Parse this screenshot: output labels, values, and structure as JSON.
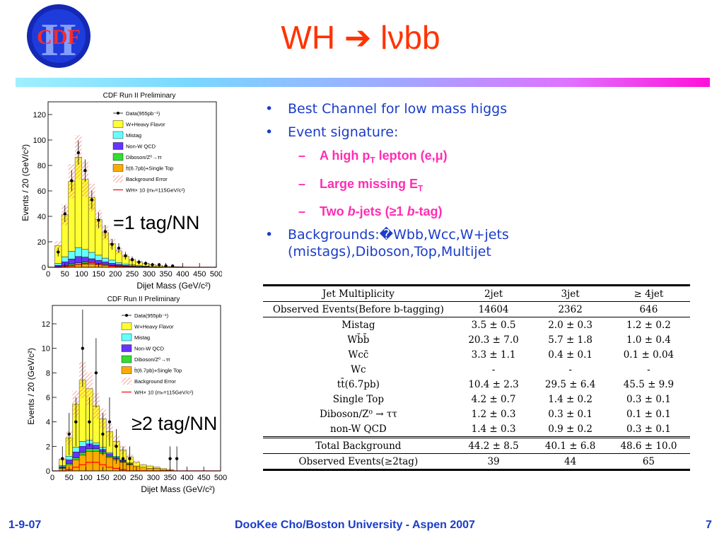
{
  "logo": {
    "text": "CDF",
    "numeral": "II"
  },
  "title": "WH ➔ lνbb",
  "bullets": {
    "b1": "Best Channel for low mass higgs",
    "b2": "Event signature:",
    "sub1": {
      "a": "A high p",
      "sub": "T",
      "b": " lepton (e,μ)"
    },
    "sub2": {
      "a": "Large missing E",
      "sub": "T"
    },
    "sub3": {
      "a": "Two ",
      "b": "b",
      "c": "-jets (≥1 ",
      "d": "b",
      "e": "-tag)"
    },
    "b3": "Backgrounds:�Wbb,Wcc,W+jets (mistags),Diboson,Top,Multijet"
  },
  "tag_labels": {
    "one": "=1 tag/NN",
    "two": "≥2 tag/NN"
  },
  "plots": {
    "top": {
      "title": "CDF Run II Preliminary",
      "ylabel": "Events / 20 (GeV/c²)",
      "xlabel": "Dijet Mass (GeV/c²)",
      "yticks": [
        "0",
        "20",
        "40",
        "60",
        "80",
        "100",
        "120"
      ],
      "xticks": [
        "0",
        "50",
        "100",
        "150",
        "200",
        "250",
        "300",
        "350",
        "400",
        "450",
        "500"
      ]
    },
    "bottom": {
      "title": "CDF Run II Preliminary",
      "ylabel": "Events / 20 (GeV/c²)",
      "xlabel": "Dijet Mass (GeV/c²)",
      "yticks": [
        "0",
        "2",
        "4",
        "6",
        "8",
        "10",
        "12"
      ],
      "xticks": [
        "0",
        "50",
        "100",
        "150",
        "200",
        "250",
        "300",
        "350",
        "400",
        "450",
        "500"
      ]
    },
    "legend": [
      {
        "label": "Data(955pb⁻¹)",
        "kind": "data",
        "color": "#000000"
      },
      {
        "label": "W+Heavy Flavor",
        "kind": "box",
        "color": "#ffff33"
      },
      {
        "label": "Mistag",
        "kind": "box",
        "color": "#66ffff"
      },
      {
        "label": "Non-W QCD",
        "kind": "box",
        "color": "#6633ff"
      },
      {
        "label": "Diboson/Z⁰→ττ",
        "kind": "box",
        "color": "#33dd33"
      },
      {
        "label": "t̄t(6.7pb)+Single Top",
        "kind": "box",
        "color": "#ffaa00"
      },
      {
        "label": "Background Error",
        "kind": "hatch",
        "color": "#ff6666"
      },
      {
        "label": "WH× 10 (mₕ=115GeV/c²)",
        "kind": "line",
        "color": "#ff0000"
      }
    ]
  },
  "table": {
    "header": [
      "Jet Multiplicity",
      "2jet",
      "3jet",
      "≥ 4jet"
    ],
    "observed_before": [
      "Observed Events(Before b-tagging)",
      "14604",
      "2362",
      "646"
    ],
    "rows": [
      [
        "Mistag",
        "3.5 ± 0.5",
        "2.0 ± 0.3",
        "1.2 ± 0.2"
      ],
      [
        "Wb̄b̄",
        "20.3 ± 7.0",
        "5.7 ± 1.8",
        "1.0 ± 0.4"
      ],
      [
        "Wcc̄",
        "3.3 ± 1.1",
        "0.4 ± 0.1",
        "0.1 ± 0.04"
      ],
      [
        "Wc",
        "-",
        "-",
        "-"
      ],
      [
        "tt̄(6.7pb)",
        "10.4 ± 2.3",
        "29.5 ± 6.4",
        "45.5 ± 9.9"
      ],
      [
        "Single Top",
        "4.2 ± 0.7",
        "1.4 ± 0.2",
        "0.3 ± 0.1"
      ],
      [
        "Diboson/Z⁰ → ττ",
        "1.2 ± 0.3",
        "0.3 ± 0.1",
        "0.1 ± 0.1"
      ],
      [
        "non-W QCD",
        "1.4 ± 0.3",
        "0.9 ± 0.2",
        "0.3 ± 0.1"
      ]
    ],
    "total": [
      "Total Background",
      "44.2 ± 8.5",
      "40.1 ± 6.8",
      "48.6 ± 10.0"
    ],
    "observed_after": [
      "Observed Events(≥2tag)",
      "39",
      "44",
      "65"
    ]
  },
  "footer": {
    "left": "1-9-07",
    "center": "DooKee Cho/Boston University - Aspen 2007",
    "right": "7"
  },
  "chart_data": [
    {
      "type": "bar",
      "title": "CDF Run II Preliminary",
      "xlabel": "Dijet Mass (GeV/c²)",
      "ylabel": "Events / 20 (GeV/c²)",
      "xlim": [
        0,
        500
      ],
      "ylim": [
        0,
        130
      ],
      "bin_width": 20,
      "categories": [
        10,
        30,
        50,
        70,
        90,
        110,
        130,
        150,
        170,
        190,
        210,
        230,
        250,
        270,
        290,
        310,
        330,
        350,
        370,
        390,
        410,
        430,
        450,
        470,
        490
      ],
      "series": [
        {
          "name": "t̄t(6.7pb)+Single Top",
          "values": [
            0,
            0.3,
            0.8,
            1.5,
            2,
            2.5,
            2.5,
            2,
            1.6,
            1.2,
            1,
            0.8,
            0.6,
            0.4,
            0.3,
            0.2,
            0.2,
            0.1,
            0.1,
            0.1,
            0,
            0,
            0,
            0,
            0
          ]
        },
        {
          "name": "Diboson/Z⁰→ττ",
          "values": [
            0,
            0.2,
            0.5,
            1,
            1.5,
            1.5,
            1.2,
            1,
            0.6,
            0.4,
            0.3,
            0.2,
            0.1,
            0.1,
            0.1,
            0,
            0,
            0,
            0,
            0,
            0,
            0,
            0,
            0,
            0
          ]
        },
        {
          "name": "Non-W QCD",
          "values": [
            0,
            1,
            3,
            4,
            5,
            4,
            3,
            2.5,
            2,
            1.5,
            1,
            0.6,
            0.4,
            0.3,
            0.2,
            0.1,
            0.1,
            0,
            0,
            0,
            0,
            0,
            0,
            0,
            0
          ]
        },
        {
          "name": "Mistag",
          "values": [
            0,
            1.5,
            4,
            6,
            7,
            6,
            5,
            4,
            3,
            2.5,
            1.5,
            1,
            0.8,
            0.5,
            0.3,
            0.2,
            0.1,
            0.1,
            0,
            0,
            0,
            0,
            0,
            0,
            0
          ]
        },
        {
          "name": "W+Heavy Flavor",
          "values": [
            0,
            14,
            33,
            55,
            71,
            55,
            43,
            28,
            20,
            13,
            9,
            6,
            4,
            3,
            2,
            1.5,
            1,
            0.5,
            0.4,
            0.3,
            0.2,
            0.1,
            0.1,
            0,
            0
          ]
        }
      ],
      "data": {
        "name": "Data(955pb⁻¹)",
        "values": [
          0,
          12,
          42,
          68,
          90,
          76,
          53,
          37,
          28,
          18,
          15,
          9,
          6,
          4,
          3,
          2,
          2,
          1,
          1,
          0,
          0,
          0,
          0,
          0,
          0
        ]
      },
      "signal": {
        "name": "WH× 10 (mₕ=115GeV/c²)",
        "values": [
          0,
          0,
          0.5,
          1,
          2,
          3,
          3.5,
          2.5,
          1.5,
          0.8,
          0.4,
          0.2,
          0.1,
          0,
          0,
          0,
          0,
          0,
          0,
          0,
          0,
          0,
          0,
          0,
          0
        ]
      }
    },
    {
      "type": "bar",
      "title": "CDF Run II Preliminary",
      "xlabel": "Dijet Mass (GeV/c²)",
      "ylabel": "Events / 20 (GeV/c²)",
      "xlim": [
        0,
        500
      ],
      "ylim": [
        0,
        13.5
      ],
      "bin_width": 20,
      "categories": [
        10,
        30,
        50,
        70,
        90,
        110,
        130,
        150,
        170,
        190,
        210,
        230,
        250,
        270,
        290,
        310,
        330,
        350,
        370,
        390,
        410,
        430,
        450,
        470,
        490
      ],
      "series": [
        {
          "name": "t̄t(6.7pb)+Single Top",
          "values": [
            0,
            0.2,
            0.5,
            0.9,
            1.3,
            1.6,
            1.6,
            1.4,
            1.1,
            0.9,
            0.7,
            0.5,
            0.4,
            0.3,
            0.2,
            0.2,
            0.1,
            0.1,
            0,
            0,
            0,
            0,
            0,
            0,
            0
          ]
        },
        {
          "name": "Diboson/Z⁰→ττ",
          "values": [
            0,
            0.05,
            0.1,
            0.15,
            0.2,
            0.2,
            0.2,
            0.15,
            0.1,
            0.1,
            0.05,
            0.05,
            0,
            0,
            0,
            0,
            0,
            0,
            0,
            0,
            0,
            0,
            0,
            0,
            0
          ]
        },
        {
          "name": "Non-W QCD",
          "values": [
            0,
            0.1,
            0.3,
            0.5,
            0.5,
            0.4,
            0.3,
            0.2,
            0.2,
            0.1,
            0.1,
            0.05,
            0,
            0,
            0,
            0,
            0,
            0,
            0,
            0,
            0,
            0,
            0,
            0,
            0
          ]
        },
        {
          "name": "Mistag",
          "values": [
            0,
            0.1,
            0.3,
            0.4,
            0.4,
            0.3,
            0.2,
            0.2,
            0.1,
            0.1,
            0.05,
            0.05,
            0,
            0,
            0,
            0,
            0,
            0,
            0,
            0,
            0,
            0,
            0,
            0,
            0
          ]
        },
        {
          "name": "W+Heavy Flavor",
          "values": [
            0,
            0.5,
            1.5,
            3.5,
            5,
            4.2,
            3,
            2.3,
            1.7,
            1.2,
            0.8,
            0.5,
            0.3,
            0.2,
            0.2,
            0.1,
            0.1,
            0,
            0,
            0,
            0,
            0,
            0,
            0,
            0
          ]
        }
      ],
      "data": {
        "name": "Data(955pb⁻¹)",
        "values": [
          0,
          1,
          3,
          4,
          10,
          4,
          8,
          3,
          4,
          2,
          1,
          1,
          0,
          0,
          0,
          0,
          0,
          1,
          1,
          0,
          0,
          0,
          0,
          0,
          0
        ]
      },
      "signal": {
        "name": "WH× 10 (mₕ=115GeV/c²)",
        "values": [
          0,
          0,
          0.1,
          0.3,
          0.5,
          0.7,
          0.7,
          0.5,
          0.3,
          0.2,
          0.1,
          0,
          0,
          0,
          0,
          0,
          0,
          0,
          0,
          0,
          0,
          0,
          0,
          0,
          0
        ]
      }
    }
  ]
}
